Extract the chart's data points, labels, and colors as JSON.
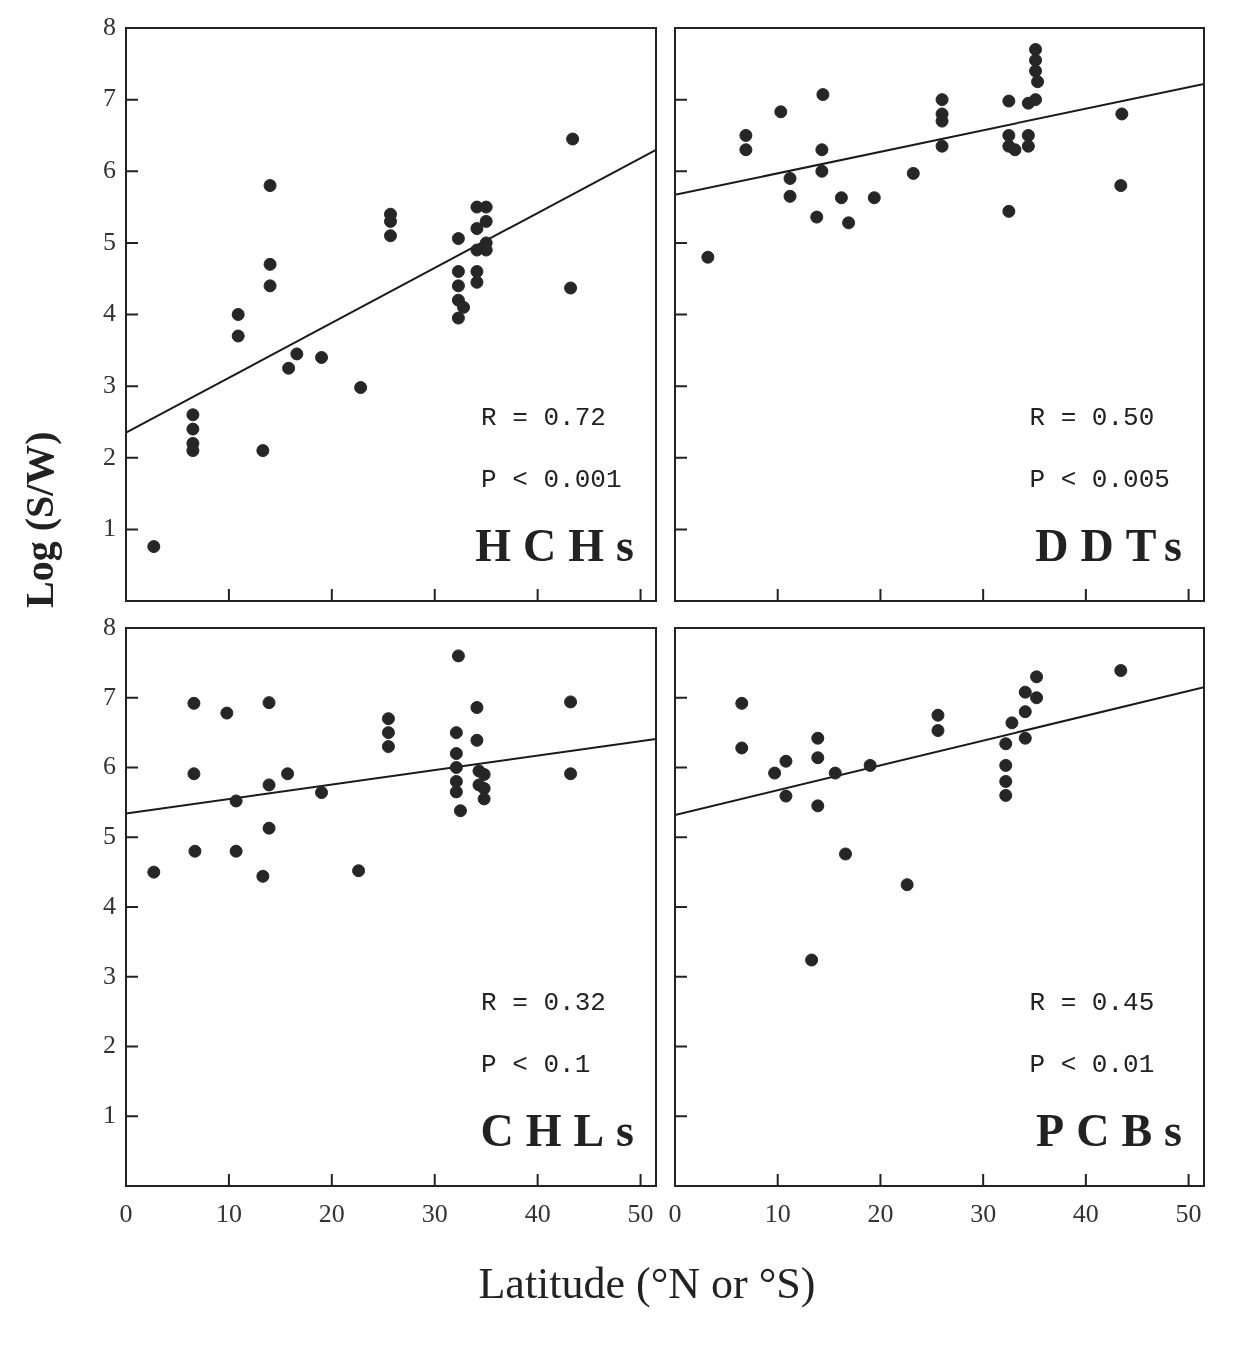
{
  "chart_data": [
    {
      "type": "scatter",
      "title": "HCHs",
      "ylabel": "Log (S/W)",
      "annotations": [
        "R = 0.72",
        "P < 0.001"
      ],
      "xlim": [
        0,
        51.5
      ],
      "xticks": [
        0,
        10,
        20,
        30,
        40,
        50
      ],
      "ylim": [
        0,
        8
      ],
      "yticks": [
        1,
        2,
        3,
        4,
        5,
        6,
        7,
        8
      ],
      "tick_labels": "y",
      "series": [
        {
          "marker": "circle",
          "color": "#262626",
          "x": [
            2.7,
            6.5,
            6.5,
            6.5,
            6.5,
            10.9,
            10.9,
            13.3,
            14.0,
            14.0,
            14.0,
            15.8,
            16.6,
            19.0,
            22.8,
            25.7,
            25.7,
            25.7,
            32.3,
            32.3,
            32.3,
            32.3,
            32.3,
            32.8,
            34.1,
            34.1,
            34.1,
            34.1,
            34.1,
            35.0,
            35.0,
            35.0,
            35.0,
            43.4,
            43.2
          ],
          "values": [
            0.76,
            2.6,
            2.4,
            2.2,
            2.1,
            4.0,
            3.7,
            2.1,
            5.8,
            4.7,
            4.4,
            3.25,
            3.45,
            3.4,
            2.98,
            5.4,
            5.3,
            5.1,
            5.06,
            4.6,
            4.4,
            4.2,
            3.95,
            4.1,
            5.5,
            5.2,
            4.9,
            4.6,
            4.45,
            5.5,
            5.3,
            5.0,
            4.9,
            6.45,
            4.37
          ]
        },
        {
          "type": "line",
          "color": "#1a1a1a",
          "x": [
            0,
            51.5
          ],
          "values": [
            2.35,
            6.3
          ]
        }
      ]
    },
    {
      "type": "scatter",
      "title": "DDTs",
      "annotations": [
        "R = 0.50",
        "P < 0.005"
      ],
      "xlim": [
        0,
        51.5
      ],
      "xticks": [
        0,
        10,
        20,
        30,
        40,
        50
      ],
      "ylim": [
        0,
        8
      ],
      "yticks": [
        1,
        2,
        3,
        4,
        5,
        6,
        7,
        8
      ],
      "tick_labels": false,
      "series": [
        {
          "marker": "circle",
          "color": "#262626",
          "x": [
            3.2,
            6.9,
            6.9,
            10.3,
            11.2,
            11.2,
            14.4,
            14.3,
            14.3,
            13.8,
            16.2,
            16.9,
            19.4,
            23.2,
            26.0,
            26.0,
            26.0,
            26.0,
            32.5,
            32.5,
            32.5,
            33.1,
            32.5,
            34.4,
            34.4,
            34.4,
            35.1,
            35.1,
            35.1,
            35.1,
            35.3,
            43.5,
            43.4
          ],
          "values": [
            4.8,
            6.5,
            6.3,
            6.83,
            5.9,
            5.65,
            7.07,
            6.3,
            6.0,
            5.36,
            5.63,
            5.28,
            5.63,
            5.97,
            7.0,
            6.8,
            6.7,
            6.35,
            6.98,
            6.5,
            6.35,
            6.3,
            5.44,
            6.5,
            6.35,
            6.95,
            7.7,
            7.55,
            7.4,
            7.0,
            7.25,
            6.8,
            5.8
          ]
        },
        {
          "type": "line",
          "color": "#1a1a1a",
          "x": [
            0,
            51.5
          ],
          "values": [
            5.67,
            7.22
          ]
        }
      ]
    },
    {
      "type": "scatter",
      "title": "CHLs",
      "xlabel": "Latitude (°N or °S)",
      "annotations": [
        "R = 0.32",
        "P < 0.1"
      ],
      "xlim": [
        0,
        51.5
      ],
      "xticks": [
        0,
        10,
        20,
        30,
        40,
        50
      ],
      "ylim": [
        0,
        8
      ],
      "yticks": [
        1,
        2,
        3,
        4,
        5,
        6,
        7,
        8
      ],
      "series": [
        {
          "marker": "circle",
          "color": "#262626",
          "x": [
            2.7,
            6.6,
            6.6,
            6.7,
            9.8,
            10.7,
            10.7,
            13.9,
            13.9,
            13.9,
            13.3,
            15.7,
            19.0,
            22.6,
            25.5,
            25.5,
            25.5,
            32.3,
            32.1,
            32.1,
            32.1,
            32.1,
            32.1,
            32.5,
            34.1,
            34.1,
            34.3,
            34.3,
            34.8,
            34.8,
            34.8,
            43.2,
            43.2
          ],
          "values": [
            4.5,
            6.92,
            5.91,
            4.8,
            6.78,
            5.52,
            4.8,
            6.93,
            5.75,
            5.13,
            4.44,
            5.91,
            5.64,
            4.52,
            6.7,
            6.5,
            6.3,
            7.6,
            6.5,
            6.2,
            6.0,
            5.8,
            5.65,
            5.38,
            6.86,
            6.39,
            5.95,
            5.75,
            5.9,
            5.7,
            5.55,
            6.94,
            5.91
          ]
        },
        {
          "type": "line",
          "color": "#1a1a1a",
          "x": [
            0,
            51.5
          ],
          "values": [
            5.34,
            6.41
          ]
        }
      ]
    },
    {
      "type": "scatter",
      "title": "PCBs",
      "annotations": [
        "R = 0.45",
        "P < 0.01"
      ],
      "xlim": [
        0,
        51.5
      ],
      "xticks": [
        0,
        10,
        20,
        30,
        40,
        50
      ],
      "ylim": [
        0,
        8
      ],
      "yticks": [
        1,
        2,
        3,
        4,
        5,
        6,
        7,
        8
      ],
      "tick_labels": "x",
      "series": [
        {
          "marker": "circle",
          "color": "#262626",
          "x": [
            6.5,
            6.5,
            9.7,
            10.8,
            10.8,
            13.9,
            13.9,
            13.9,
            13.3,
            15.6,
            16.6,
            19.0,
            22.6,
            25.6,
            25.6,
            32.2,
            32.2,
            32.2,
            32.2,
            32.8,
            34.1,
            34.1,
            34.1,
            35.2,
            35.2,
            43.4
          ],
          "values": [
            6.92,
            6.28,
            5.92,
            6.09,
            5.59,
            6.42,
            6.14,
            5.45,
            3.24,
            5.92,
            4.76,
            6.03,
            4.32,
            6.75,
            6.53,
            6.34,
            6.03,
            5.8,
            5.6,
            6.64,
            7.08,
            6.8,
            6.42,
            7.3,
            7.0,
            7.39
          ]
        },
        {
          "type": "line",
          "color": "#1a1a1a",
          "x": [
            0,
            51.5
          ],
          "values": [
            5.32,
            7.15
          ]
        }
      ]
    }
  ]
}
